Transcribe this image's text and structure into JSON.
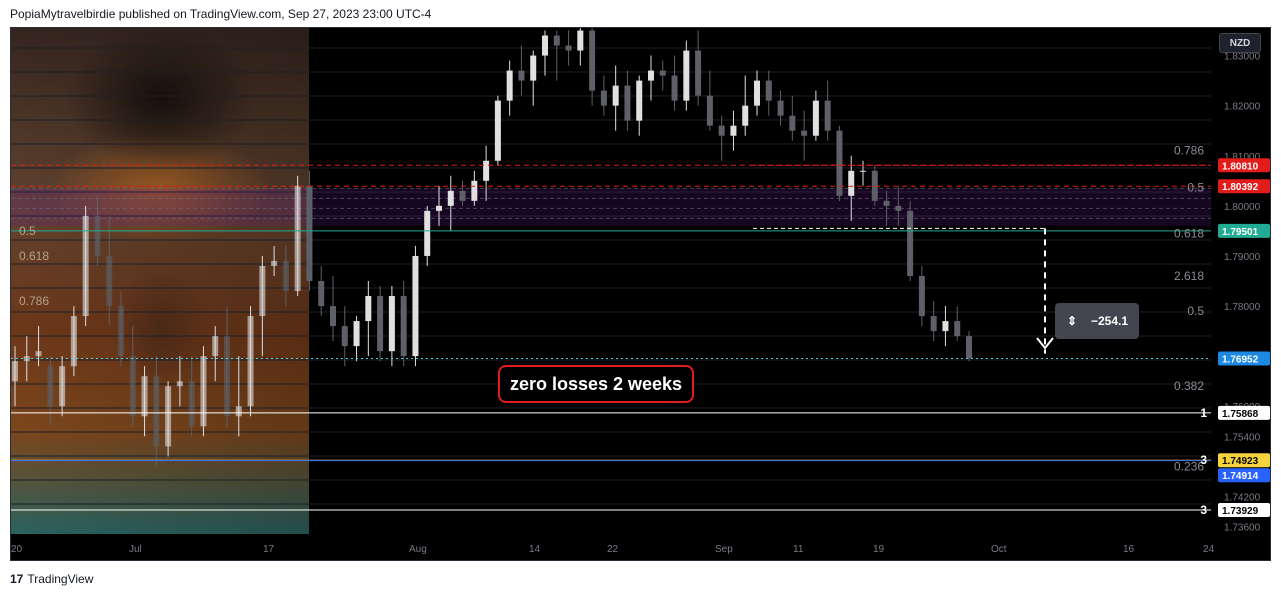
{
  "header": {
    "published": "PopiaMytravelbirdie published on TradingView.com, Sep 27, 2023 23:00 UTC-4"
  },
  "footer": {
    "brand": "TradingView",
    "logo": "tradingview-logo-icon"
  },
  "currency_button": "NZD",
  "annotation": "zero losses 2 weeks",
  "measure": {
    "icon": "height-range-icon",
    "value": "−254.1"
  },
  "colors": {
    "background": "#000000",
    "candle_up": "#e0e0e0",
    "candle_down": "#5d6066",
    "red": "#e21b1b",
    "green": "#22ab94",
    "cyan": "#4dd0e1",
    "magenta": "#c239e0",
    "blue": "#2962ff",
    "yellow": "#f5d33c"
  },
  "chart_data": {
    "type": "candlestick",
    "title": "",
    "ylim": [
      1.7345,
      1.8355
    ],
    "x_ticks": [
      "20",
      "Jul",
      "17",
      "Aug",
      "14",
      "22",
      "Sep",
      "11",
      "19",
      "Oct",
      "16",
      "24"
    ],
    "y_ticks": [
      "1.83000",
      "1.82000",
      "1.81000",
      "1.80000",
      "1.79000",
      "1.78000",
      "1.77000",
      "1.76000",
      "1.75400",
      "1.74200",
      "1.73600"
    ],
    "candles": [
      {
        "o": 1.765,
        "h": 1.772,
        "l": 1.76,
        "c": 1.769
      },
      {
        "o": 1.769,
        "h": 1.774,
        "l": 1.765,
        "c": 1.77
      },
      {
        "o": 1.77,
        "h": 1.776,
        "l": 1.768,
        "c": 1.771
      },
      {
        "o": 1.768,
        "h": 1.77,
        "l": 1.756,
        "c": 1.76
      },
      {
        "o": 1.76,
        "h": 1.77,
        "l": 1.758,
        "c": 1.768
      },
      {
        "o": 1.768,
        "h": 1.78,
        "l": 1.766,
        "c": 1.778
      },
      {
        "o": 1.778,
        "h": 1.8,
        "l": 1.776,
        "c": 1.798
      },
      {
        "o": 1.798,
        "h": 1.802,
        "l": 1.788,
        "c": 1.79
      },
      {
        "o": 1.79,
        "h": 1.798,
        "l": 1.776,
        "c": 1.78
      },
      {
        "o": 1.78,
        "h": 1.783,
        "l": 1.768,
        "c": 1.77
      },
      {
        "o": 1.77,
        "h": 1.776,
        "l": 1.756,
        "c": 1.758
      },
      {
        "o": 1.758,
        "h": 1.768,
        "l": 1.754,
        "c": 1.766
      },
      {
        "o": 1.766,
        "h": 1.77,
        "l": 1.748,
        "c": 1.752
      },
      {
        "o": 1.752,
        "h": 1.765,
        "l": 1.75,
        "c": 1.764
      },
      {
        "o": 1.764,
        "h": 1.77,
        "l": 1.76,
        "c": 1.765
      },
      {
        "o": 1.765,
        "h": 1.77,
        "l": 1.754,
        "c": 1.756
      },
      {
        "o": 1.756,
        "h": 1.772,
        "l": 1.754,
        "c": 1.77
      },
      {
        "o": 1.77,
        "h": 1.776,
        "l": 1.765,
        "c": 1.774
      },
      {
        "o": 1.774,
        "h": 1.78,
        "l": 1.756,
        "c": 1.758
      },
      {
        "o": 1.758,
        "h": 1.77,
        "l": 1.754,
        "c": 1.76
      },
      {
        "o": 1.76,
        "h": 1.78,
        "l": 1.758,
        "c": 1.778
      },
      {
        "o": 1.778,
        "h": 1.79,
        "l": 1.77,
        "c": 1.788
      },
      {
        "o": 1.788,
        "h": 1.792,
        "l": 1.786,
        "c": 1.789
      },
      {
        "o": 1.789,
        "h": 1.792,
        "l": 1.78,
        "c": 1.783
      },
      {
        "o": 1.783,
        "h": 1.806,
        "l": 1.782,
        "c": 1.804
      },
      {
        "o": 1.804,
        "h": 1.807,
        "l": 1.783,
        "c": 1.785
      },
      {
        "o": 1.785,
        "h": 1.788,
        "l": 1.778,
        "c": 1.78
      },
      {
        "o": 1.78,
        "h": 1.786,
        "l": 1.773,
        "c": 1.776
      },
      {
        "o": 1.776,
        "h": 1.78,
        "l": 1.768,
        "c": 1.772
      },
      {
        "o": 1.772,
        "h": 1.778,
        "l": 1.769,
        "c": 1.777
      },
      {
        "o": 1.777,
        "h": 1.785,
        "l": 1.77,
        "c": 1.782
      },
      {
        "o": 1.782,
        "h": 1.784,
        "l": 1.769,
        "c": 1.771
      },
      {
        "o": 1.771,
        "h": 1.784,
        "l": 1.768,
        "c": 1.782
      },
      {
        "o": 1.782,
        "h": 1.785,
        "l": 1.768,
        "c": 1.77
      },
      {
        "o": 1.77,
        "h": 1.792,
        "l": 1.768,
        "c": 1.79
      },
      {
        "o": 1.79,
        "h": 1.8,
        "l": 1.788,
        "c": 1.799
      },
      {
        "o": 1.799,
        "h": 1.804,
        "l": 1.796,
        "c": 1.8
      },
      {
        "o": 1.8,
        "h": 1.806,
        "l": 1.795,
        "c": 1.803
      },
      {
        "o": 1.803,
        "h": 1.805,
        "l": 1.8,
        "c": 1.801
      },
      {
        "o": 1.801,
        "h": 1.807,
        "l": 1.8,
        "c": 1.805
      },
      {
        "o": 1.805,
        "h": 1.812,
        "l": 1.801,
        "c": 1.809
      },
      {
        "o": 1.809,
        "h": 1.822,
        "l": 1.808,
        "c": 1.821
      },
      {
        "o": 1.821,
        "h": 1.829,
        "l": 1.818,
        "c": 1.827
      },
      {
        "o": 1.827,
        "h": 1.832,
        "l": 1.822,
        "c": 1.825
      },
      {
        "o": 1.825,
        "h": 1.831,
        "l": 1.82,
        "c": 1.83
      },
      {
        "o": 1.83,
        "h": 1.835,
        "l": 1.826,
        "c": 1.834
      },
      {
        "o": 1.834,
        "h": 1.835,
        "l": 1.825,
        "c": 1.832
      },
      {
        "o": 1.832,
        "h": 1.835,
        "l": 1.828,
        "c": 1.831
      },
      {
        "o": 1.831,
        "h": 1.836,
        "l": 1.828,
        "c": 1.835
      },
      {
        "o": 1.835,
        "h": 1.836,
        "l": 1.82,
        "c": 1.823
      },
      {
        "o": 1.823,
        "h": 1.826,
        "l": 1.818,
        "c": 1.82
      },
      {
        "o": 1.82,
        "h": 1.828,
        "l": 1.815,
        "c": 1.824
      },
      {
        "o": 1.824,
        "h": 1.827,
        "l": 1.815,
        "c": 1.817
      },
      {
        "o": 1.817,
        "h": 1.826,
        "l": 1.814,
        "c": 1.825
      },
      {
        "o": 1.825,
        "h": 1.83,
        "l": 1.821,
        "c": 1.827
      },
      {
        "o": 1.827,
        "h": 1.829,
        "l": 1.823,
        "c": 1.826
      },
      {
        "o": 1.826,
        "h": 1.83,
        "l": 1.819,
        "c": 1.821
      },
      {
        "o": 1.821,
        "h": 1.833,
        "l": 1.819,
        "c": 1.831
      },
      {
        "o": 1.831,
        "h": 1.835,
        "l": 1.82,
        "c": 1.822
      },
      {
        "o": 1.822,
        "h": 1.827,
        "l": 1.815,
        "c": 1.816
      },
      {
        "o": 1.816,
        "h": 1.818,
        "l": 1.809,
        "c": 1.814
      },
      {
        "o": 1.814,
        "h": 1.819,
        "l": 1.811,
        "c": 1.816
      },
      {
        "o": 1.816,
        "h": 1.826,
        "l": 1.814,
        "c": 1.82
      },
      {
        "o": 1.82,
        "h": 1.827,
        "l": 1.818,
        "c": 1.825
      },
      {
        "o": 1.825,
        "h": 1.827,
        "l": 1.818,
        "c": 1.821
      },
      {
        "o": 1.821,
        "h": 1.823,
        "l": 1.816,
        "c": 1.818
      },
      {
        "o": 1.818,
        "h": 1.822,
        "l": 1.813,
        "c": 1.815
      },
      {
        "o": 1.815,
        "h": 1.819,
        "l": 1.809,
        "c": 1.814
      },
      {
        "o": 1.814,
        "h": 1.823,
        "l": 1.813,
        "c": 1.821
      },
      {
        "o": 1.821,
        "h": 1.825,
        "l": 1.813,
        "c": 1.815
      },
      {
        "o": 1.815,
        "h": 1.816,
        "l": 1.801,
        "c": 1.802
      },
      {
        "o": 1.802,
        "h": 1.81,
        "l": 1.797,
        "c": 1.807
      },
      {
        "o": 1.807,
        "h": 1.809,
        "l": 1.804,
        "c": 1.807
      },
      {
        "o": 1.807,
        "h": 1.808,
        "l": 1.8,
        "c": 1.801
      },
      {
        "o": 1.801,
        "h": 1.803,
        "l": 1.796,
        "c": 1.8
      },
      {
        "o": 1.8,
        "h": 1.804,
        "l": 1.796,
        "c": 1.799
      },
      {
        "o": 1.799,
        "h": 1.801,
        "l": 1.785,
        "c": 1.786
      },
      {
        "o": 1.786,
        "h": 1.788,
        "l": 1.776,
        "c": 1.778
      },
      {
        "o": 1.778,
        "h": 1.781,
        "l": 1.773,
        "c": 1.775
      },
      {
        "o": 1.775,
        "h": 1.78,
        "l": 1.772,
        "c": 1.777
      },
      {
        "o": 1.777,
        "h": 1.78,
        "l": 1.773,
        "c": 1.774
      },
      {
        "o": 1.774,
        "h": 1.775,
        "l": 1.769,
        "c": 1.7695
      }
    ],
    "horizontal_lines": [
      {
        "price": 1.8081,
        "label": "1.80810",
        "color": "#e21b1b",
        "style": "dashed"
      },
      {
        "price": 1.80392,
        "label": "1.80392",
        "color": "#e21b1b",
        "style": "dashed"
      },
      {
        "price": 1.79501,
        "label": "1.79501",
        "color": "#22ab94",
        "style": "solid"
      },
      {
        "price": 1.76952,
        "label": "1.76952",
        "color": "#4dd0e1",
        "style": "dotted"
      },
      {
        "price": 1.75868,
        "label": "1.75868",
        "color": "#ffffff",
        "style": "solid"
      },
      {
        "price": 1.74923,
        "label": "1.74923",
        "color": "#f5d33c",
        "style": "solid"
      },
      {
        "price": 1.74914,
        "label": "1.74914",
        "color": "#2962ff",
        "style": "solid"
      },
      {
        "price": 1.73929,
        "label": "1.73929",
        "color": "#ffffff",
        "style": "solid"
      }
    ],
    "fib_labels": [
      {
        "text": "0.786",
        "price": 1.811
      },
      {
        "text": "0.5",
        "price": 1.8037
      },
      {
        "text": "0.618",
        "price": 1.7945
      },
      {
        "text": "2.618",
        "price": 1.786
      },
      {
        "text": "0.5",
        "price": 1.779
      },
      {
        "text": "0.382",
        "price": 1.764
      },
      {
        "text": "0.236",
        "price": 1.748
      }
    ],
    "level_markers": [
      {
        "text": "1",
        "price": 1.75868
      },
      {
        "text": "3",
        "price": 1.74923
      },
      {
        "text": "3",
        "price": 1.73929
      }
    ],
    "photo_overlay_fib_labels": [
      {
        "text": "0.5",
        "price": 1.795
      },
      {
        "text": "0.618",
        "price": 1.79
      },
      {
        "text": "0.786",
        "price": 1.781
      }
    ]
  }
}
